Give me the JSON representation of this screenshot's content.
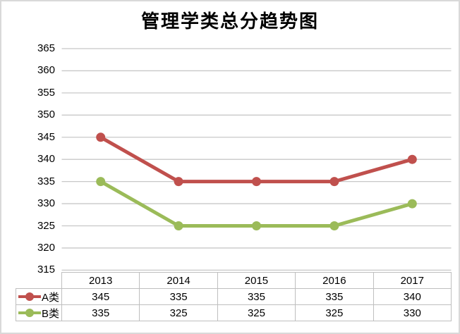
{
  "chart_data": {
    "type": "line",
    "title": "管理学类总分趋势图",
    "categories": [
      "2013",
      "2014",
      "2015",
      "2016",
      "2017"
    ],
    "series": [
      {
        "name": "A类",
        "color": "#C0504D",
        "values": [
          345,
          335,
          335,
          335,
          340
        ]
      },
      {
        "name": "B类",
        "color": "#9BBB59",
        "values": [
          335,
          325,
          325,
          325,
          330
        ]
      }
    ],
    "ylim": [
      315,
      365
    ],
    "ytick_step": 5,
    "yticks": [
      365,
      360,
      355,
      350,
      345,
      340,
      335,
      330,
      325,
      320,
      315
    ],
    "grid": "horizontal",
    "legend_position": "data-table-left",
    "marker": "circle",
    "line_width": 5,
    "marker_radius": 6.5
  },
  "colors": {
    "background": "#FFFFFF",
    "chart_border": "#D9D9D9",
    "gridline": "#C8C8C8",
    "table_border": "#BFBFBF",
    "text": "#000000",
    "series_a": "#C0504D",
    "series_b": "#9BBB59"
  }
}
